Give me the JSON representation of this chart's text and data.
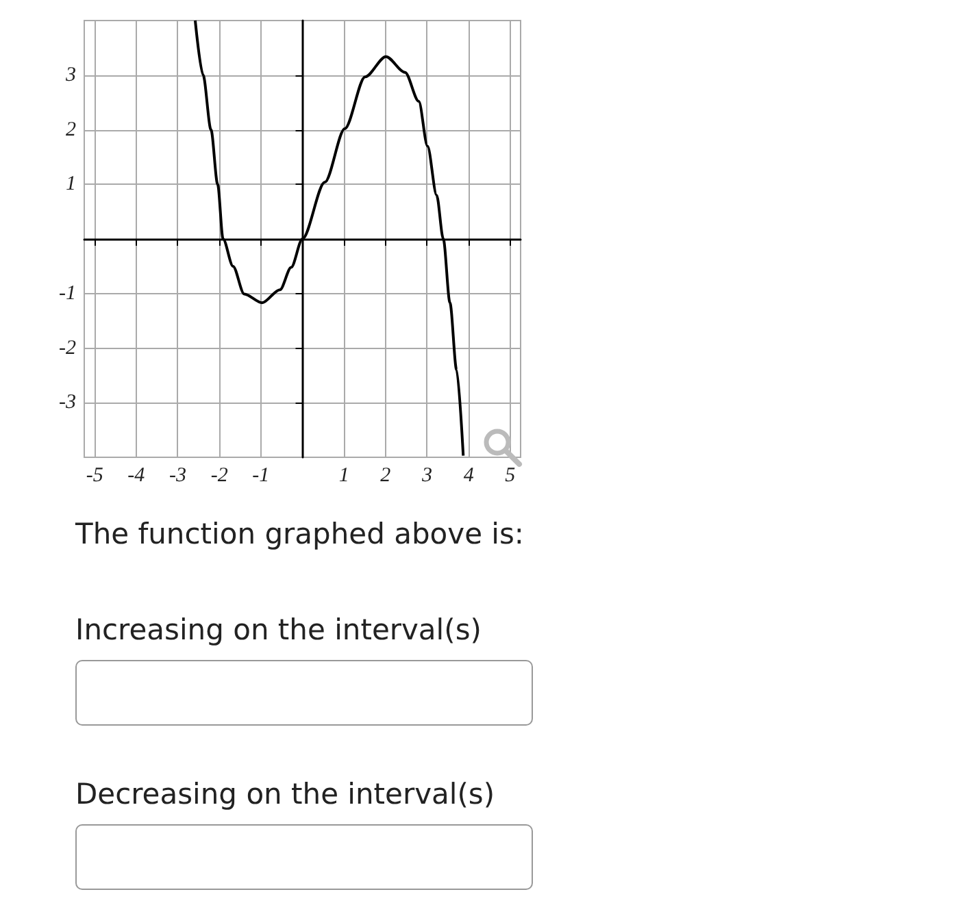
{
  "chart_data": {
    "type": "line",
    "x": [
      -2.58,
      -2.39,
      -2.2,
      -2.04,
      -1.91,
      -1.67,
      -1.4,
      -0.97,
      -0.54,
      -0.27,
      0,
      0.54,
      1.02,
      1.51,
      2.01,
      2.47,
      2.8,
      3.01,
      3.23,
      3.39,
      3.55,
      3.71,
      3.87
    ],
    "series": [
      {
        "color": "#000000",
        "values": [
          4,
          3,
          2,
          1,
          0,
          -0.5,
          -1.01,
          -1.17,
          -0.93,
          -0.52,
          0,
          1.04,
          2.02,
          2.97,
          3.34,
          3.05,
          2.52,
          1.7,
          0.8,
          0,
          -1.17,
          -2.4,
          -3.97
        ]
      }
    ],
    "xlim": [
      -5.25,
      5.25
    ],
    "xticks": [
      -5,
      -4,
      -3,
      -2,
      -1,
      1,
      2,
      3,
      4,
      5
    ],
    "ylim": [
      -4,
      4
    ],
    "yticks": [
      -3,
      -2,
      -1,
      1,
      2,
      3
    ],
    "grid": true,
    "marker": "none",
    "line_style": "solid",
    "annotations": [
      "The function graphed above is:",
      "Increasing on the interval(s)",
      "Decreasing on the interval(s)"
    ]
  }
}
